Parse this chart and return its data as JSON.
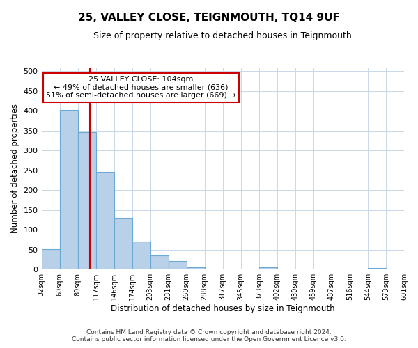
{
  "title": "25, VALLEY CLOSE, TEIGNMOUTH, TQ14 9UF",
  "subtitle": "Size of property relative to detached houses in Teignmouth",
  "xlabel": "Distribution of detached houses by size in Teignmouth",
  "ylabel": "Number of detached properties",
  "bar_color": "#b8d0e8",
  "bar_edge_color": "#6aaad4",
  "bar_values": [
    52,
    403,
    347,
    246,
    130,
    71,
    35,
    22,
    6,
    0,
    0,
    0,
    5,
    0,
    0,
    0,
    0,
    0,
    3,
    0
  ],
  "bin_labels": [
    "32sqm",
    "60sqm",
    "89sqm",
    "117sqm",
    "146sqm",
    "174sqm",
    "203sqm",
    "231sqm",
    "260sqm",
    "288sqm",
    "317sqm",
    "345sqm",
    "373sqm",
    "402sqm",
    "430sqm",
    "459sqm",
    "487sqm",
    "516sqm",
    "544sqm",
    "573sqm",
    "601sqm"
  ],
  "ylim": [
    0,
    510
  ],
  "yticks": [
    0,
    50,
    100,
    150,
    200,
    250,
    300,
    350,
    400,
    450,
    500
  ],
  "red_line_x": 2.67,
  "annotation_title": "25 VALLEY CLOSE: 104sqm",
  "annotation_line1": "← 49% of detached houses are smaller (636)",
  "annotation_line2": "51% of semi-detached houses are larger (669) →",
  "annotation_box_color": "#ffffff",
  "annotation_box_edge": "#cc0000",
  "footer1": "Contains HM Land Registry data © Crown copyright and database right 2024.",
  "footer2": "Contains public sector information licensed under the Open Government Licence v3.0.",
  "background_color": "#ffffff",
  "grid_color": "#c8d8e8"
}
